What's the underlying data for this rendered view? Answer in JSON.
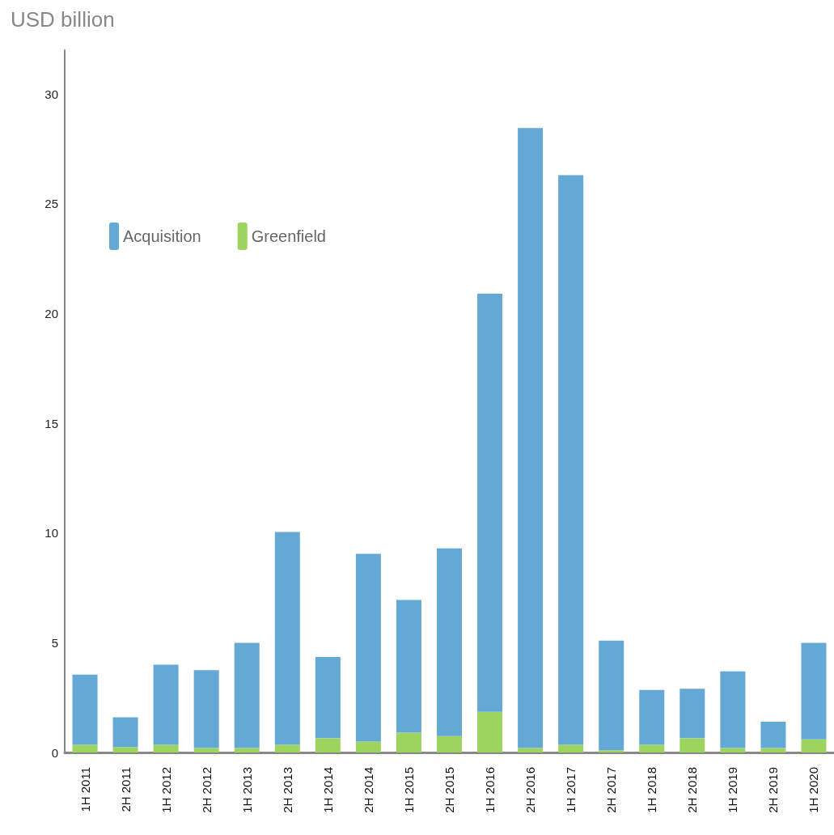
{
  "chart_data": {
    "type": "bar",
    "title": "USD billion",
    "stacked": true,
    "legend": "top left",
    "grid": false,
    "categories": [
      "1H 2011",
      "2H 2011",
      "1H 2012",
      "2H 2012",
      "1H 2013",
      "2H 2013",
      "1H 2014",
      "2H 2014",
      "1H 2015",
      "2H 2015",
      "1H 2016",
      "2H 2016",
      "1H 2017",
      "2H 2017",
      "1H 2018",
      "2H 2018",
      "1H 2019",
      "2H 2019",
      "1H 2020"
    ],
    "series": [
      {
        "name": "Greenfield",
        "color": "#9dd45e",
        "values": [
          0.35,
          0.25,
          0.35,
          0.2,
          0.2,
          0.35,
          0.65,
          0.5,
          0.9,
          0.75,
          1.85,
          0.2,
          0.35,
          0.1,
          0.35,
          0.65,
          0.2,
          0.2,
          0.6
        ]
      },
      {
        "name": "Acquisition",
        "color": "#64a9d6",
        "values": [
          3.2,
          1.35,
          3.65,
          3.55,
          4.8,
          9.7,
          3.7,
          8.55,
          6.05,
          8.55,
          19.05,
          28.25,
          25.95,
          5.0,
          2.5,
          2.25,
          3.5,
          1.2,
          4.4
        ]
      }
    ],
    "ylim": [
      0,
      32
    ],
    "yticks": [
      0,
      5,
      10,
      15,
      20,
      25,
      30
    ]
  }
}
